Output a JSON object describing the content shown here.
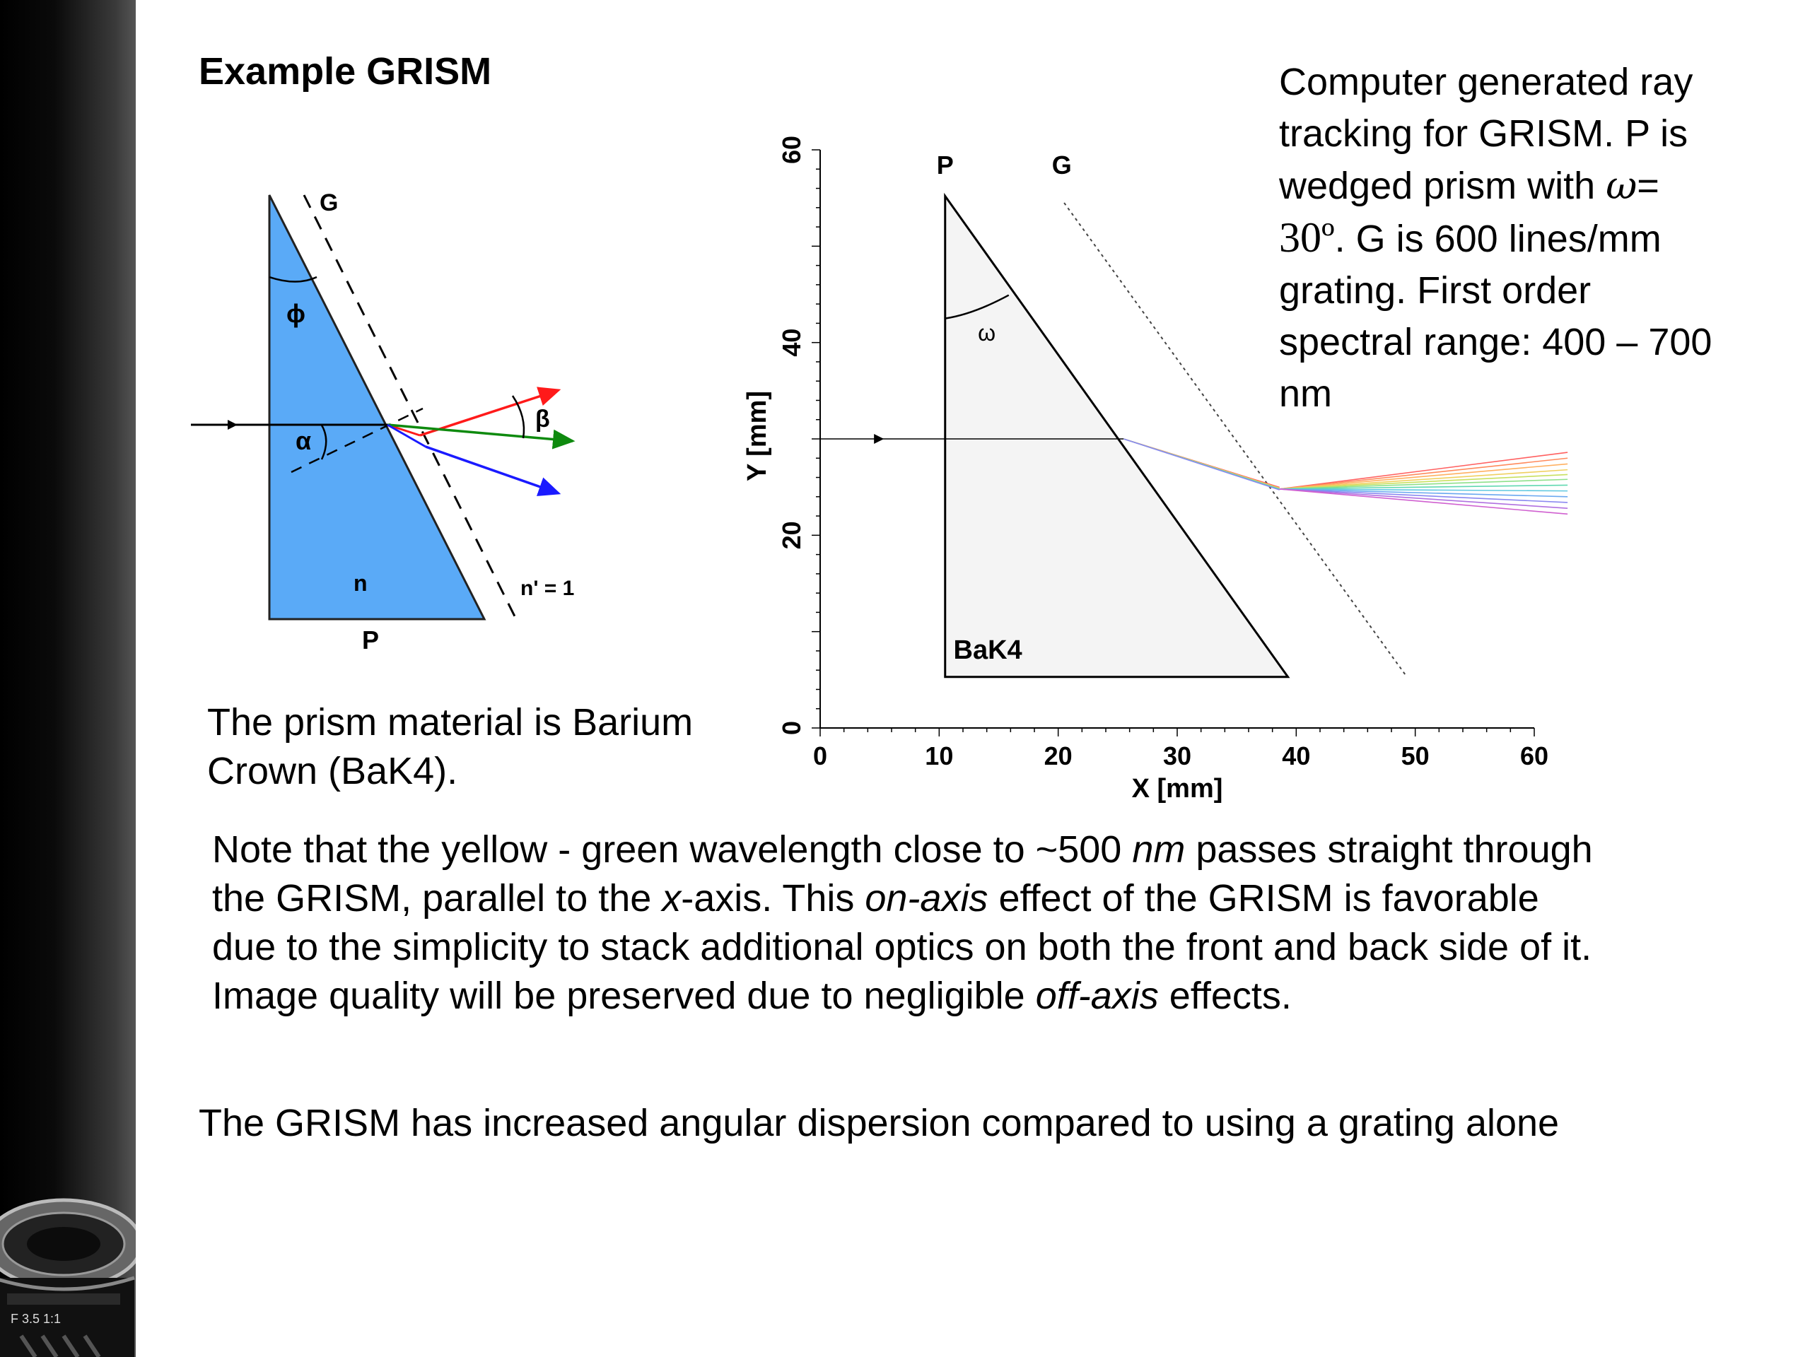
{
  "title": "Example GRISM",
  "caption": {
    "line1": "Computer generated ray",
    "line2": "tracking for GRISM. P is",
    "line3_pre": "wedged prism with",
    "omega": "ω",
    "equals": "=",
    "thirty": "30º",
    "line4_post": ". G is 600 lines/mm",
    "line5": "grating. First order",
    "line6": "spectral range: 400 – 700",
    "line7": "nm"
  },
  "left_diagram": {
    "label_G": "G",
    "label_phi": "ϕ",
    "label_alpha": "α",
    "label_beta": "β",
    "label_n": "n",
    "label_n_prime": "n' = 1",
    "label_P": "P",
    "colors": {
      "prism_fill": "#5aaaf7",
      "ray_red": "#ff1a1a",
      "ray_green": "#0e8a0e",
      "ray_blue": "#1a1aff"
    }
  },
  "material_text": {
    "line1": "The prism material is Barium",
    "line2": "Crown (BaK4)."
  },
  "chart_data": {
    "type": "line",
    "xlabel": "X [mm]",
    "ylabel": "Y [mm]",
    "xlim": [
      0,
      60
    ],
    "ylim": [
      0,
      60
    ],
    "x_ticks": [
      "0",
      "10",
      "20",
      "30",
      "40",
      "50",
      "60"
    ],
    "y_ticks": [
      "0",
      "20",
      "40",
      "60"
    ],
    "label_P": "P",
    "label_G": "G",
    "label_omega": "ω",
    "label_material": "BaK4",
    "prism": [
      [
        10.5,
        5.3
      ],
      [
        10.5,
        55.2
      ],
      [
        39.3,
        5.3
      ]
    ],
    "grating_line": [
      [
        20.5,
        54.5
      ],
      [
        49.3,
        5.3
      ]
    ],
    "incident_ray": [
      [
        0,
        30
      ],
      [
        25.5,
        30
      ]
    ],
    "prism_exit_point": [
      25.5,
      30
    ],
    "grating_hit_point": [
      38.6,
      24.8
    ],
    "dispersed_rays_end_y": [
      28.6,
      28.0,
      27.4,
      26.8,
      26.3,
      25.8,
      25.2,
      24.6,
      24.0,
      23.4,
      22.8,
      22.2
    ],
    "dispersed_rays_end_x": 62.8,
    "ray_colors": [
      "#ff6060",
      "#ff8a5c",
      "#ffb060",
      "#f0d060",
      "#c8e060",
      "#8ee08a",
      "#60d8b0",
      "#60c8e0",
      "#6aa8f0",
      "#8a88f0",
      "#b070e0",
      "#d060d0"
    ]
  },
  "note": {
    "p1": "Note that the yellow - green wavelength close to ~500 ",
    "nm": "nm",
    "p2": " passes straight through",
    "p3": "the GRISM, parallel to the ",
    "x": "x",
    "p4": "-axis. This ",
    "onaxis": "on-axis",
    "p5": " effect of the GRISM is favorable",
    "p6": "due to the simplicity to stack additional optics on both the front and back side of it.",
    "p7": "Image quality will be preserved due to negligible ",
    "offaxis": "off-axis",
    "p8": " effects."
  },
  "dispersion_text": "The GRISM has increased angular dispersion compared to using a grating alone"
}
